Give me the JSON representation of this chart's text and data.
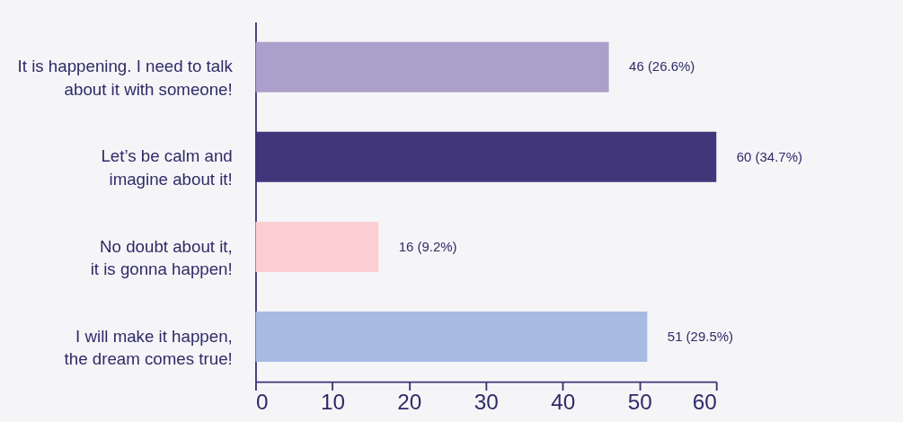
{
  "chart_data": {
    "type": "bar",
    "orientation": "horizontal",
    "categories": [
      "It is happening. I need to talk\nabout it with someone!",
      "Let’s be calm and\nimagine about it!",
      "No doubt about it,\nit is gonna happen!",
      "I will make it happen,\nthe dream comes true!"
    ],
    "values": [
      46,
      60,
      16,
      51
    ],
    "colors": [
      "#ab9fcc",
      "#41367a",
      "#fbcfd2",
      "#a7bae2"
    ],
    "value_labels": [
      "46 (26.6%)",
      "60 (34.7%)",
      "16 (9.2%)",
      "51 (29.5%)"
    ],
    "xlim": [
      0,
      60
    ],
    "xticks": [
      0,
      10,
      20,
      30,
      40,
      50,
      60
    ],
    "grid": false
  }
}
